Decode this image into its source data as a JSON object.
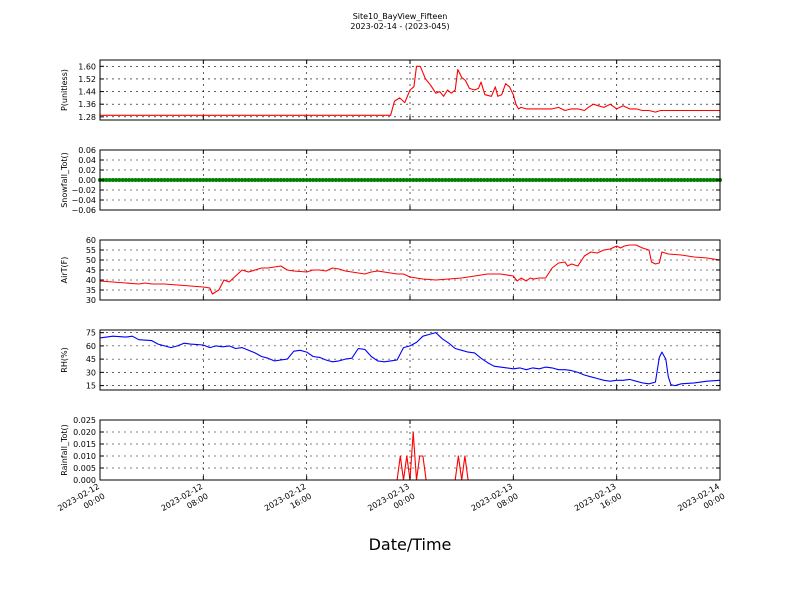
{
  "figure": {
    "title_line1": "Site10_BayView_Fifteen",
    "title_line2": "2023-02-14 - (2023-045)",
    "xlabel": "Date/Time"
  },
  "chart_data": {
    "type": "line",
    "grid": true,
    "x_range": [
      "2023-02-12 00:00",
      "2023-02-14 00:00"
    ],
    "x_ticks": [
      {
        "line1": "2023-02-12",
        "line2": "00:00",
        "hours": 0
      },
      {
        "line1": "2023-02-12",
        "line2": "08:00",
        "hours": 8
      },
      {
        "line1": "2023-02-12",
        "line2": "16:00",
        "hours": 16
      },
      {
        "line1": "2023-02-13",
        "line2": "00:00",
        "hours": 24
      },
      {
        "line1": "2023-02-13",
        "line2": "08:00",
        "hours": 32
      },
      {
        "line1": "2023-02-13",
        "line2": "16:00",
        "hours": 40
      },
      {
        "line1": "2023-02-14",
        "line2": "00:00",
        "hours": 48
      }
    ],
    "panels": [
      {
        "ylabel": "P(unitless)",
        "color": "#ff0000",
        "ylim": [
          1.26,
          1.64
        ],
        "yticks": [
          "1.60",
          "1.52",
          "1.44",
          "1.36",
          "1.28"
        ],
        "ytick_values": [
          1.6,
          1.52,
          1.44,
          1.36,
          1.28
        ],
        "points": [
          [
            0,
            1.29
          ],
          [
            1,
            1.29
          ],
          [
            2,
            1.29
          ],
          [
            3,
            1.29
          ],
          [
            4,
            1.29
          ],
          [
            5,
            1.29
          ],
          [
            6,
            1.29
          ],
          [
            7,
            1.29
          ],
          [
            8,
            1.29
          ],
          [
            9,
            1.29
          ],
          [
            10,
            1.29
          ],
          [
            11,
            1.29
          ],
          [
            12,
            1.29
          ],
          [
            13,
            1.29
          ],
          [
            14,
            1.29
          ],
          [
            15,
            1.29
          ],
          [
            16,
            1.29
          ],
          [
            17,
            1.29
          ],
          [
            18,
            1.29
          ],
          [
            19,
            1.29
          ],
          [
            20,
            1.29
          ],
          [
            21,
            1.29
          ],
          [
            22,
            1.29
          ],
          [
            22.5,
            1.29
          ],
          [
            22.8,
            1.38
          ],
          [
            23.2,
            1.4
          ],
          [
            23.6,
            1.37
          ],
          [
            24.0,
            1.45
          ],
          [
            24.3,
            1.47
          ],
          [
            24.5,
            1.6
          ],
          [
            24.8,
            1.6
          ],
          [
            25.2,
            1.52
          ],
          [
            25.6,
            1.48
          ],
          [
            26.0,
            1.43
          ],
          [
            26.3,
            1.44
          ],
          [
            26.6,
            1.41
          ],
          [
            26.9,
            1.45
          ],
          [
            27.2,
            1.43
          ],
          [
            27.5,
            1.45
          ],
          [
            27.7,
            1.58
          ],
          [
            28.0,
            1.53
          ],
          [
            28.3,
            1.51
          ],
          [
            28.6,
            1.46
          ],
          [
            29.0,
            1.45
          ],
          [
            29.3,
            1.46
          ],
          [
            29.5,
            1.5
          ],
          [
            29.8,
            1.42
          ],
          [
            30.3,
            1.41
          ],
          [
            30.6,
            1.47
          ],
          [
            30.8,
            1.41
          ],
          [
            31.1,
            1.42
          ],
          [
            31.4,
            1.49
          ],
          [
            31.7,
            1.47
          ],
          [
            32.0,
            1.42
          ],
          [
            32.2,
            1.36
          ],
          [
            32.4,
            1.33
          ],
          [
            32.6,
            1.34
          ],
          [
            33,
            1.33
          ],
          [
            34,
            1.33
          ],
          [
            35,
            1.33
          ],
          [
            35.5,
            1.34
          ],
          [
            36.0,
            1.32
          ],
          [
            36.5,
            1.33
          ],
          [
            37.0,
            1.33
          ],
          [
            37.5,
            1.32
          ],
          [
            37.8,
            1.34
          ],
          [
            38.2,
            1.36
          ],
          [
            38.6,
            1.35
          ],
          [
            39.0,
            1.34
          ],
          [
            39.5,
            1.36
          ],
          [
            40.0,
            1.33
          ],
          [
            40.5,
            1.35
          ],
          [
            41.0,
            1.33
          ],
          [
            41.5,
            1.33
          ],
          [
            42.0,
            1.32
          ],
          [
            42.5,
            1.32
          ],
          [
            43.0,
            1.31
          ],
          [
            43.4,
            1.32
          ],
          [
            44,
            1.32
          ],
          [
            45,
            1.32
          ],
          [
            46,
            1.32
          ],
          [
            47,
            1.32
          ],
          [
            48,
            1.32
          ]
        ]
      },
      {
        "ylabel": "Snowfall_Tot()",
        "color": "#008000",
        "ylim": [
          -0.06,
          0.06
        ],
        "yticks": [
          "0.06",
          "0.04",
          "0.02",
          "0.00",
          "−0.02",
          "−0.04",
          "−0.06"
        ],
        "ytick_values": [
          0.06,
          0.04,
          0.02,
          0.0,
          -0.02,
          -0.04,
          -0.06
        ],
        "points": [
          [
            0,
            0
          ],
          [
            48,
            0
          ]
        ],
        "markers": true
      },
      {
        "ylabel": "AirT(F)",
        "color": "#ff0000",
        "ylim": [
          30,
          60
        ],
        "yticks": [
          "60",
          "55",
          "50",
          "45",
          "40",
          "35",
          "30"
        ],
        "ytick_values": [
          60,
          55,
          50,
          45,
          40,
          35,
          30
        ],
        "points": [
          [
            0,
            39.5
          ],
          [
            1,
            39
          ],
          [
            2,
            38.5
          ],
          [
            3,
            38
          ],
          [
            3.5,
            38.5
          ],
          [
            4,
            38
          ],
          [
            5,
            38
          ],
          [
            6,
            37.5
          ],
          [
            7,
            37
          ],
          [
            8,
            36.5
          ],
          [
            8.5,
            36
          ],
          [
            8.7,
            33
          ],
          [
            9.2,
            35
          ],
          [
            9.6,
            40
          ],
          [
            10,
            39
          ],
          [
            10.5,
            42
          ],
          [
            11,
            45
          ],
          [
            11.5,
            44
          ],
          [
            12,
            45
          ],
          [
            12.5,
            46
          ],
          [
            13,
            46
          ],
          [
            14,
            47
          ],
          [
            14.5,
            45
          ],
          [
            15,
            44.5
          ],
          [
            16,
            44
          ],
          [
            16.5,
            45
          ],
          [
            17,
            45
          ],
          [
            17.5,
            44.5
          ],
          [
            18,
            46
          ],
          [
            18.5,
            45.5
          ],
          [
            19,
            44.5
          ],
          [
            20,
            43.5
          ],
          [
            20.5,
            43
          ],
          [
            21,
            44
          ],
          [
            21.5,
            44.5
          ],
          [
            22,
            44
          ],
          [
            23,
            43
          ],
          [
            23.5,
            43
          ],
          [
            24,
            41.5
          ],
          [
            25,
            40.5
          ],
          [
            26,
            40
          ],
          [
            27,
            40.5
          ],
          [
            28,
            41
          ],
          [
            29,
            42
          ],
          [
            30,
            43
          ],
          [
            31,
            43
          ],
          [
            32,
            42
          ],
          [
            32.3,
            39.5
          ],
          [
            32.6,
            41
          ],
          [
            33,
            39.5
          ],
          [
            33.3,
            41
          ],
          [
            33.6,
            40.5
          ],
          [
            34,
            41
          ],
          [
            34.5,
            41
          ],
          [
            35,
            46
          ],
          [
            35.5,
            48.5
          ],
          [
            36,
            49
          ],
          [
            36.2,
            47
          ],
          [
            36.5,
            48
          ],
          [
            37,
            47
          ],
          [
            37.5,
            52
          ],
          [
            38,
            54
          ],
          [
            38.5,
            53.5
          ],
          [
            39,
            55
          ],
          [
            39.5,
            55.5
          ],
          [
            40,
            57
          ],
          [
            40.3,
            56
          ],
          [
            40.6,
            57
          ],
          [
            41,
            57.5
          ],
          [
            41.5,
            57.5
          ],
          [
            42,
            56
          ],
          [
            42.5,
            55
          ],
          [
            42.7,
            49
          ],
          [
            43,
            48
          ],
          [
            43.3,
            48.5
          ],
          [
            43.5,
            54
          ],
          [
            44,
            53
          ],
          [
            45,
            52.5
          ],
          [
            46,
            51.5
          ],
          [
            47,
            51
          ],
          [
            48,
            50
          ]
        ]
      },
      {
        "ylabel": "RH(%)",
        "color": "#0000ff",
        "ylim": [
          10,
          78
        ],
        "yticks": [
          "75",
          "60",
          "45",
          "30",
          "15"
        ],
        "ytick_values": [
          75,
          60,
          45,
          30,
          15
        ],
        "points": [
          [
            0,
            69
          ],
          [
            1,
            71
          ],
          [
            2,
            70
          ],
          [
            2.5,
            71
          ],
          [
            3,
            67
          ],
          [
            4,
            66
          ],
          [
            4.5,
            62
          ],
          [
            5,
            60
          ],
          [
            5.5,
            58
          ],
          [
            6,
            60
          ],
          [
            6.5,
            63
          ],
          [
            7,
            62
          ],
          [
            8,
            61
          ],
          [
            8.5,
            58
          ],
          [
            9,
            60
          ],
          [
            9.5,
            59
          ],
          [
            10,
            60
          ],
          [
            10.5,
            57
          ],
          [
            11,
            58
          ],
          [
            11.5,
            55
          ],
          [
            12,
            52
          ],
          [
            12.5,
            48
          ],
          [
            13,
            46
          ],
          [
            13.5,
            43
          ],
          [
            14,
            44
          ],
          [
            14.5,
            45
          ],
          [
            15,
            54
          ],
          [
            15.5,
            55
          ],
          [
            16,
            53
          ],
          [
            16.5,
            48
          ],
          [
            17,
            47
          ],
          [
            17.5,
            44
          ],
          [
            18,
            42
          ],
          [
            18.5,
            43
          ],
          [
            19,
            45
          ],
          [
            19.5,
            46
          ],
          [
            20,
            57
          ],
          [
            20.5,
            56
          ],
          [
            21,
            48
          ],
          [
            21.5,
            43
          ],
          [
            22,
            42
          ],
          [
            22.5,
            43
          ],
          [
            23,
            44
          ],
          [
            23.5,
            58
          ],
          [
            24,
            60
          ],
          [
            24.5,
            64
          ],
          [
            25,
            71
          ],
          [
            25.5,
            73
          ],
          [
            26,
            75
          ],
          [
            26.5,
            68
          ],
          [
            27,
            63
          ],
          [
            27.5,
            57
          ],
          [
            28,
            55
          ],
          [
            28.5,
            53
          ],
          [
            29,
            52
          ],
          [
            29.5,
            46
          ],
          [
            30,
            41
          ],
          [
            30.5,
            37
          ],
          [
            31,
            36
          ],
          [
            31.5,
            35
          ],
          [
            32,
            34
          ],
          [
            32.5,
            35
          ],
          [
            33,
            33
          ],
          [
            33.5,
            35
          ],
          [
            34,
            34
          ],
          [
            34.5,
            36
          ],
          [
            35,
            35
          ],
          [
            35.5,
            33
          ],
          [
            36,
            33
          ],
          [
            36.5,
            32
          ],
          [
            37,
            30
          ],
          [
            37.5,
            27
          ],
          [
            38,
            25
          ],
          [
            38.5,
            23
          ],
          [
            39,
            21
          ],
          [
            39.5,
            20
          ],
          [
            40,
            21
          ],
          [
            40.5,
            21
          ],
          [
            41,
            22
          ],
          [
            41.5,
            20
          ],
          [
            42,
            18
          ],
          [
            42.5,
            17
          ],
          [
            43,
            19
          ],
          [
            43.3,
            47
          ],
          [
            43.5,
            53
          ],
          [
            43.8,
            45
          ],
          [
            44,
            25
          ],
          [
            44.2,
            16
          ],
          [
            44.5,
            15
          ],
          [
            45,
            17
          ],
          [
            46,
            18
          ],
          [
            47,
            20
          ],
          [
            48,
            21
          ]
        ]
      },
      {
        "ylabel": "Rainfall_Tot()",
        "color": "#ff0000",
        "ylim": [
          0,
          0.025
        ],
        "yticks": [
          "0.025",
          "0.020",
          "0.015",
          "0.010",
          "0.005",
          "0.000"
        ],
        "ytick_values": [
          0.025,
          0.02,
          0.015,
          0.01,
          0.005,
          0.0
        ],
        "points": [
          [
            0,
            0
          ],
          [
            23.0,
            0
          ],
          [
            23.25,
            0.01
          ],
          [
            23.5,
            0
          ],
          [
            23.75,
            0.01
          ],
          [
            24.0,
            0
          ],
          [
            24.25,
            0.02
          ],
          [
            24.5,
            0
          ],
          [
            24.75,
            0.01
          ],
          [
            25.0,
            0.01
          ],
          [
            25.25,
            0
          ],
          [
            27.5,
            0
          ],
          [
            27.75,
            0.01
          ],
          [
            28.0,
            0
          ],
          [
            28.25,
            0.01
          ],
          [
            28.5,
            0
          ],
          [
            48,
            0
          ]
        ]
      }
    ]
  }
}
